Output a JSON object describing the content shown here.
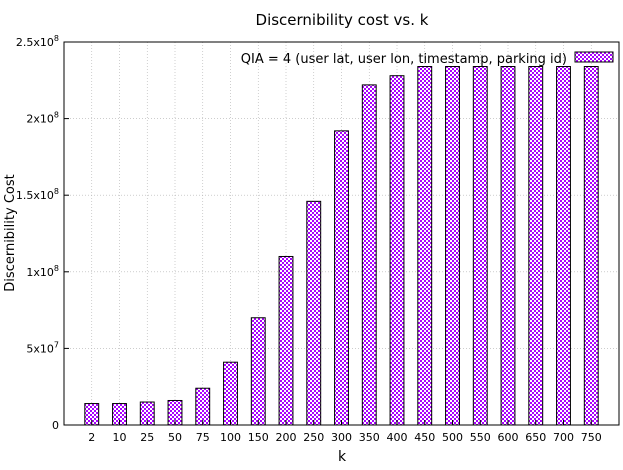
{
  "chart_data": {
    "type": "bar",
    "title": "Discernibility cost vs. k",
    "xlabel": "k",
    "ylabel": "Discernibility Cost",
    "categories": [
      "2",
      "10",
      "25",
      "50",
      "75",
      "100",
      "150",
      "200",
      "250",
      "300",
      "350",
      "400",
      "450",
      "500",
      "550",
      "600",
      "650",
      "700",
      "750"
    ],
    "series": [
      {
        "name": "QIA = 4 (user lat, user lon, timestamp, parking id)",
        "values": [
          14000000,
          14000000,
          15000000,
          16000000,
          24000000,
          41000000,
          70000000,
          110000000,
          146000000,
          192000000,
          222000000,
          228000000,
          234000000,
          234000000,
          234000000,
          234000000,
          234000000,
          234000000,
          234000000
        ]
      }
    ],
    "ylim": [
      0,
      250000000
    ],
    "yticks": [
      {
        "value": 0,
        "label": "0",
        "exp": ""
      },
      {
        "value": 50000000,
        "label": "5x10",
        "exp": "7"
      },
      {
        "value": 100000000,
        "label": "1x10",
        "exp": "8"
      },
      {
        "value": 150000000,
        "label": "1.5x10",
        "exp": "8"
      },
      {
        "value": 200000000,
        "label": "2x10",
        "exp": "8"
      },
      {
        "value": 250000000,
        "label": "2.5x10",
        "exp": "8"
      }
    ],
    "grid": true,
    "legend_position": "top-right",
    "colors": {
      "bar_fill": "#aa00ff",
      "bar_border": "#000000",
      "grid": "#b0b0b0"
    }
  }
}
